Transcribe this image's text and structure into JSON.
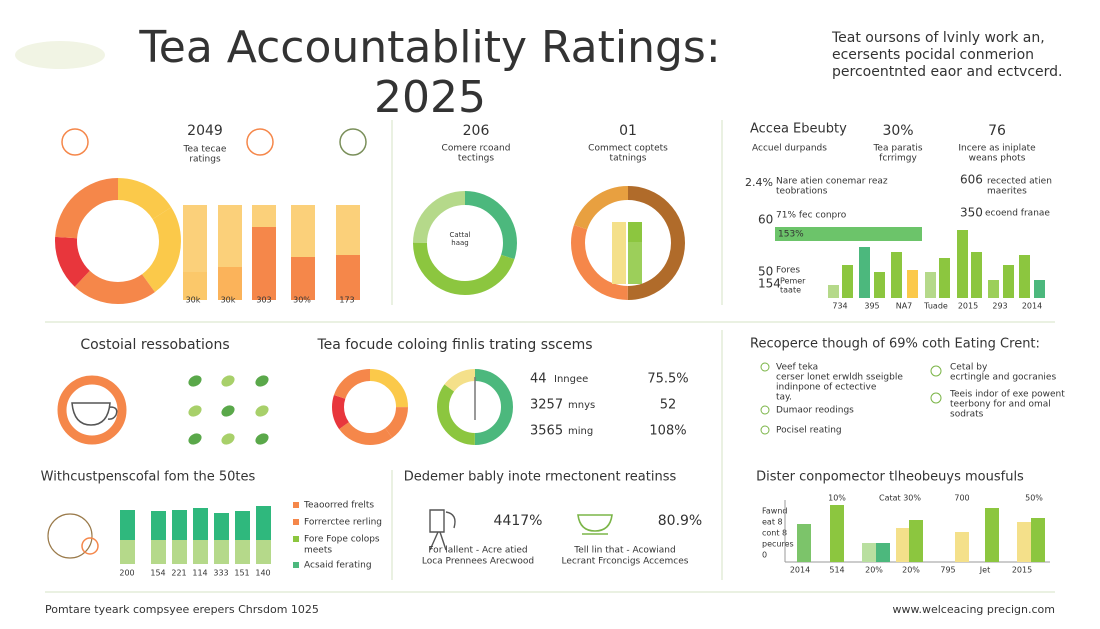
{
  "header": {
    "title": [
      "Tea Accountablity Ratings:",
      "2025"
    ],
    "intro": [
      "Teat oursons of lvinly work an,",
      "ecersents pocidal conmerion",
      "percoentnted eaor and ectvcerd."
    ]
  },
  "panel1": {
    "value": "2049",
    "caption": [
      "Tea tecae",
      "ratings"
    ],
    "bar_labels": [
      "30k",
      "30k",
      "303",
      "30%",
      "173"
    ]
  },
  "panel2": {
    "left_value": "206",
    "left_caption": [
      "Comere rcoand",
      "tectings"
    ],
    "right_value": "01",
    "right_caption": [
      "Commect coptets",
      "tatnings"
    ],
    "donut_label": [
      "Cattal",
      "haag"
    ]
  },
  "panel3": {
    "title": "Accea Ebeubty",
    "subtitle": "Accuel durpands",
    "stat1": "30%",
    "stat1_caption": [
      "Tea paratis",
      "fcrrimgy"
    ],
    "stat2": "76",
    "stat2_caption": [
      "Incere as iniplate",
      "weans phots"
    ],
    "row1_value": "2.4%",
    "row1_text": [
      "Nare atien conemar reaz",
      "teobrations"
    ],
    "row2_value": "606",
    "row2_text": [
      "recected atien",
      "maerites"
    ],
    "row3_value": "60",
    "row3_text": "71% fec conpro",
    "bar_text": "153%",
    "row4_value": "350",
    "row4_text": "ecoend franae",
    "row5_value": "50",
    "row5_text": "Fores",
    "row6_value": "154",
    "row6_text": [
      "Pemer",
      "taate"
    ],
    "x_labels": [
      "734",
      "395",
      "NA7",
      "Tuade",
      "2015",
      "293",
      "2014"
    ]
  },
  "panel4": {
    "title": "Costoial ressobations"
  },
  "panel5": {
    "title": "Tea focude coloing finlis trating sscems",
    "rows": [
      [
        "44",
        "Inngee",
        "75.5%"
      ],
      [
        "3257",
        "mnys",
        "52"
      ],
      [
        "3565",
        "ming",
        "108%"
      ]
    ]
  },
  "panel6": {
    "title": "Recoperce though of 69% coth Eating Crent:",
    "left_items": [
      [
        "Veef teka",
        "cerser lonet erwldh sseigble",
        "indinpone of ectective",
        "tay."
      ],
      [
        "Dumaor reodings"
      ],
      [
        "Pocisel reating"
      ]
    ],
    "right_items": [
      [
        "Cetal by",
        "ecrtingle and gocranies"
      ],
      [
        "Teeis indor of exe powent",
        "teerbony for and omal",
        "sodrats"
      ]
    ]
  },
  "panel7": {
    "title": "Withcustpenscofal fom the 50tes",
    "legend": [
      [
        "Teaoorred frelts"
      ],
      [
        "Forrerctee rerling"
      ],
      [
        "Fore Fope colops",
        "meets"
      ],
      [
        "Acsaid ferating"
      ]
    ],
    "x_labels": [
      "200",
      "154",
      "221",
      "114",
      "333",
      "151",
      "140"
    ]
  },
  "panel8": {
    "title": "Dedemer bably inote rmectonent reatinss",
    "left_value": "4417%",
    "left_caption": [
      "For lallent - Acre atied",
      "Loca Prennees Arecwood"
    ],
    "right_value": "80.9%",
    "right_caption": [
      "Tell lin that - Acowiand",
      "Lecrant Frconcigs Accemces"
    ]
  },
  "panel9": {
    "title": "Dister conpomector tlheobeuys mousfuls",
    "axis_text": [
      "Fawnd",
      "eat 8",
      "cont 8",
      "pecures",
      "0"
    ],
    "top_labels": [
      "10%",
      "Catat 30%",
      "700",
      "50%"
    ],
    "x_labels": [
      "2014",
      "514",
      "20%",
      "20%",
      "795",
      "Jet",
      "2015"
    ]
  },
  "footer": {
    "left": "Pomtare tyeark compsyee erepers Chrsdom 1025",
    "right": "www.welceacing precign.com"
  }
}
